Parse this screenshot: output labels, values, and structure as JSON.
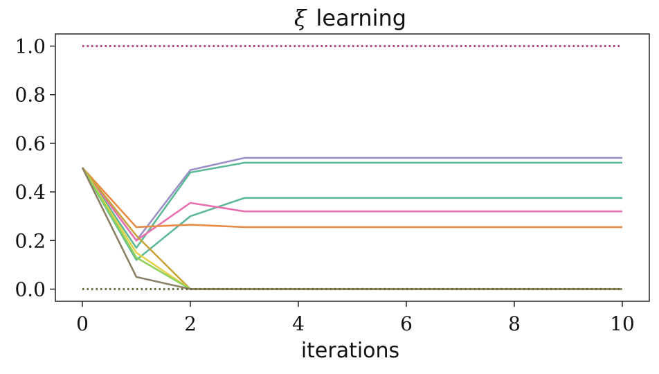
{
  "chart_data": {
    "type": "line",
    "title_symbol": "ξ",
    "title": "learning",
    "xlabel": "iterations",
    "ylabel": "",
    "xlim": [
      -0.5,
      10.5
    ],
    "ylim": [
      -0.05,
      1.05
    ],
    "xticks": [
      0,
      2,
      4,
      6,
      8,
      10
    ],
    "xtick_labels": [
      "0",
      "2",
      "4",
      "6",
      "8",
      "10"
    ],
    "yticks": [
      0.0,
      0.2,
      0.4,
      0.6,
      0.8,
      1.0
    ],
    "ytick_labels": [
      "0.0",
      "0.2",
      "0.4",
      "0.6",
      "0.8",
      "1.0"
    ],
    "grid": false,
    "x": [
      0,
      1,
      2,
      3,
      4,
      5,
      6,
      7,
      8,
      9,
      10
    ],
    "series": [
      {
        "color": "#9b8fc6",
        "style": "solid",
        "values": [
          0.5,
          0.2,
          0.49,
          0.54,
          0.54,
          0.54,
          0.54,
          0.54,
          0.54,
          0.54,
          0.54
        ]
      },
      {
        "color": "#5cb896",
        "style": "solid",
        "values": [
          0.5,
          0.17,
          0.48,
          0.52,
          0.52,
          0.52,
          0.52,
          0.52,
          0.52,
          0.52,
          0.52
        ]
      },
      {
        "color": "#5cb896",
        "style": "solid",
        "values": [
          0.5,
          0.12,
          0.3,
          0.375,
          0.375,
          0.375,
          0.375,
          0.375,
          0.375,
          0.375,
          0.375
        ]
      },
      {
        "color": "#e86fb0",
        "style": "solid",
        "values": [
          0.5,
          0.2,
          0.355,
          0.32,
          0.32,
          0.32,
          0.32,
          0.32,
          0.32,
          0.32,
          0.32
        ]
      },
      {
        "color": "#e88b45",
        "style": "solid",
        "values": [
          0.5,
          0.255,
          0.265,
          0.255,
          0.255,
          0.255,
          0.255,
          0.255,
          0.255,
          0.255,
          0.255
        ]
      },
      {
        "color": "#c6a43a",
        "style": "solid",
        "values": [
          0.5,
          0.22,
          0.0,
          0.0,
          0.0,
          0.0,
          0.0,
          0.0,
          0.0,
          0.0,
          0.0
        ]
      },
      {
        "color": "#e6d24a",
        "style": "solid",
        "values": [
          0.5,
          0.15,
          0.0,
          0.0,
          0.0,
          0.0,
          0.0,
          0.0,
          0.0,
          0.0,
          0.0
        ]
      },
      {
        "color": "#8fd05a",
        "style": "solid",
        "values": [
          0.5,
          0.13,
          0.0,
          0.0,
          0.0,
          0.0,
          0.0,
          0.0,
          0.0,
          0.0,
          0.0
        ]
      },
      {
        "color": "#8c7f66",
        "style": "solid",
        "values": [
          0.5,
          0.05,
          0.0,
          0.0,
          0.0,
          0.0,
          0.0,
          0.0,
          0.0,
          0.0,
          0.0
        ]
      },
      {
        "color": "#b5417e",
        "style": "dotted",
        "values": [
          1.0,
          1.0,
          1.0,
          1.0,
          1.0,
          1.0,
          1.0,
          1.0,
          1.0,
          1.0,
          1.0
        ]
      },
      {
        "color": "#6b6a3f",
        "style": "dotted",
        "values": [
          0.0,
          0.0,
          0.0,
          0.0,
          0.0,
          0.0,
          0.0,
          0.0,
          0.0,
          0.0,
          0.0
        ]
      }
    ]
  }
}
